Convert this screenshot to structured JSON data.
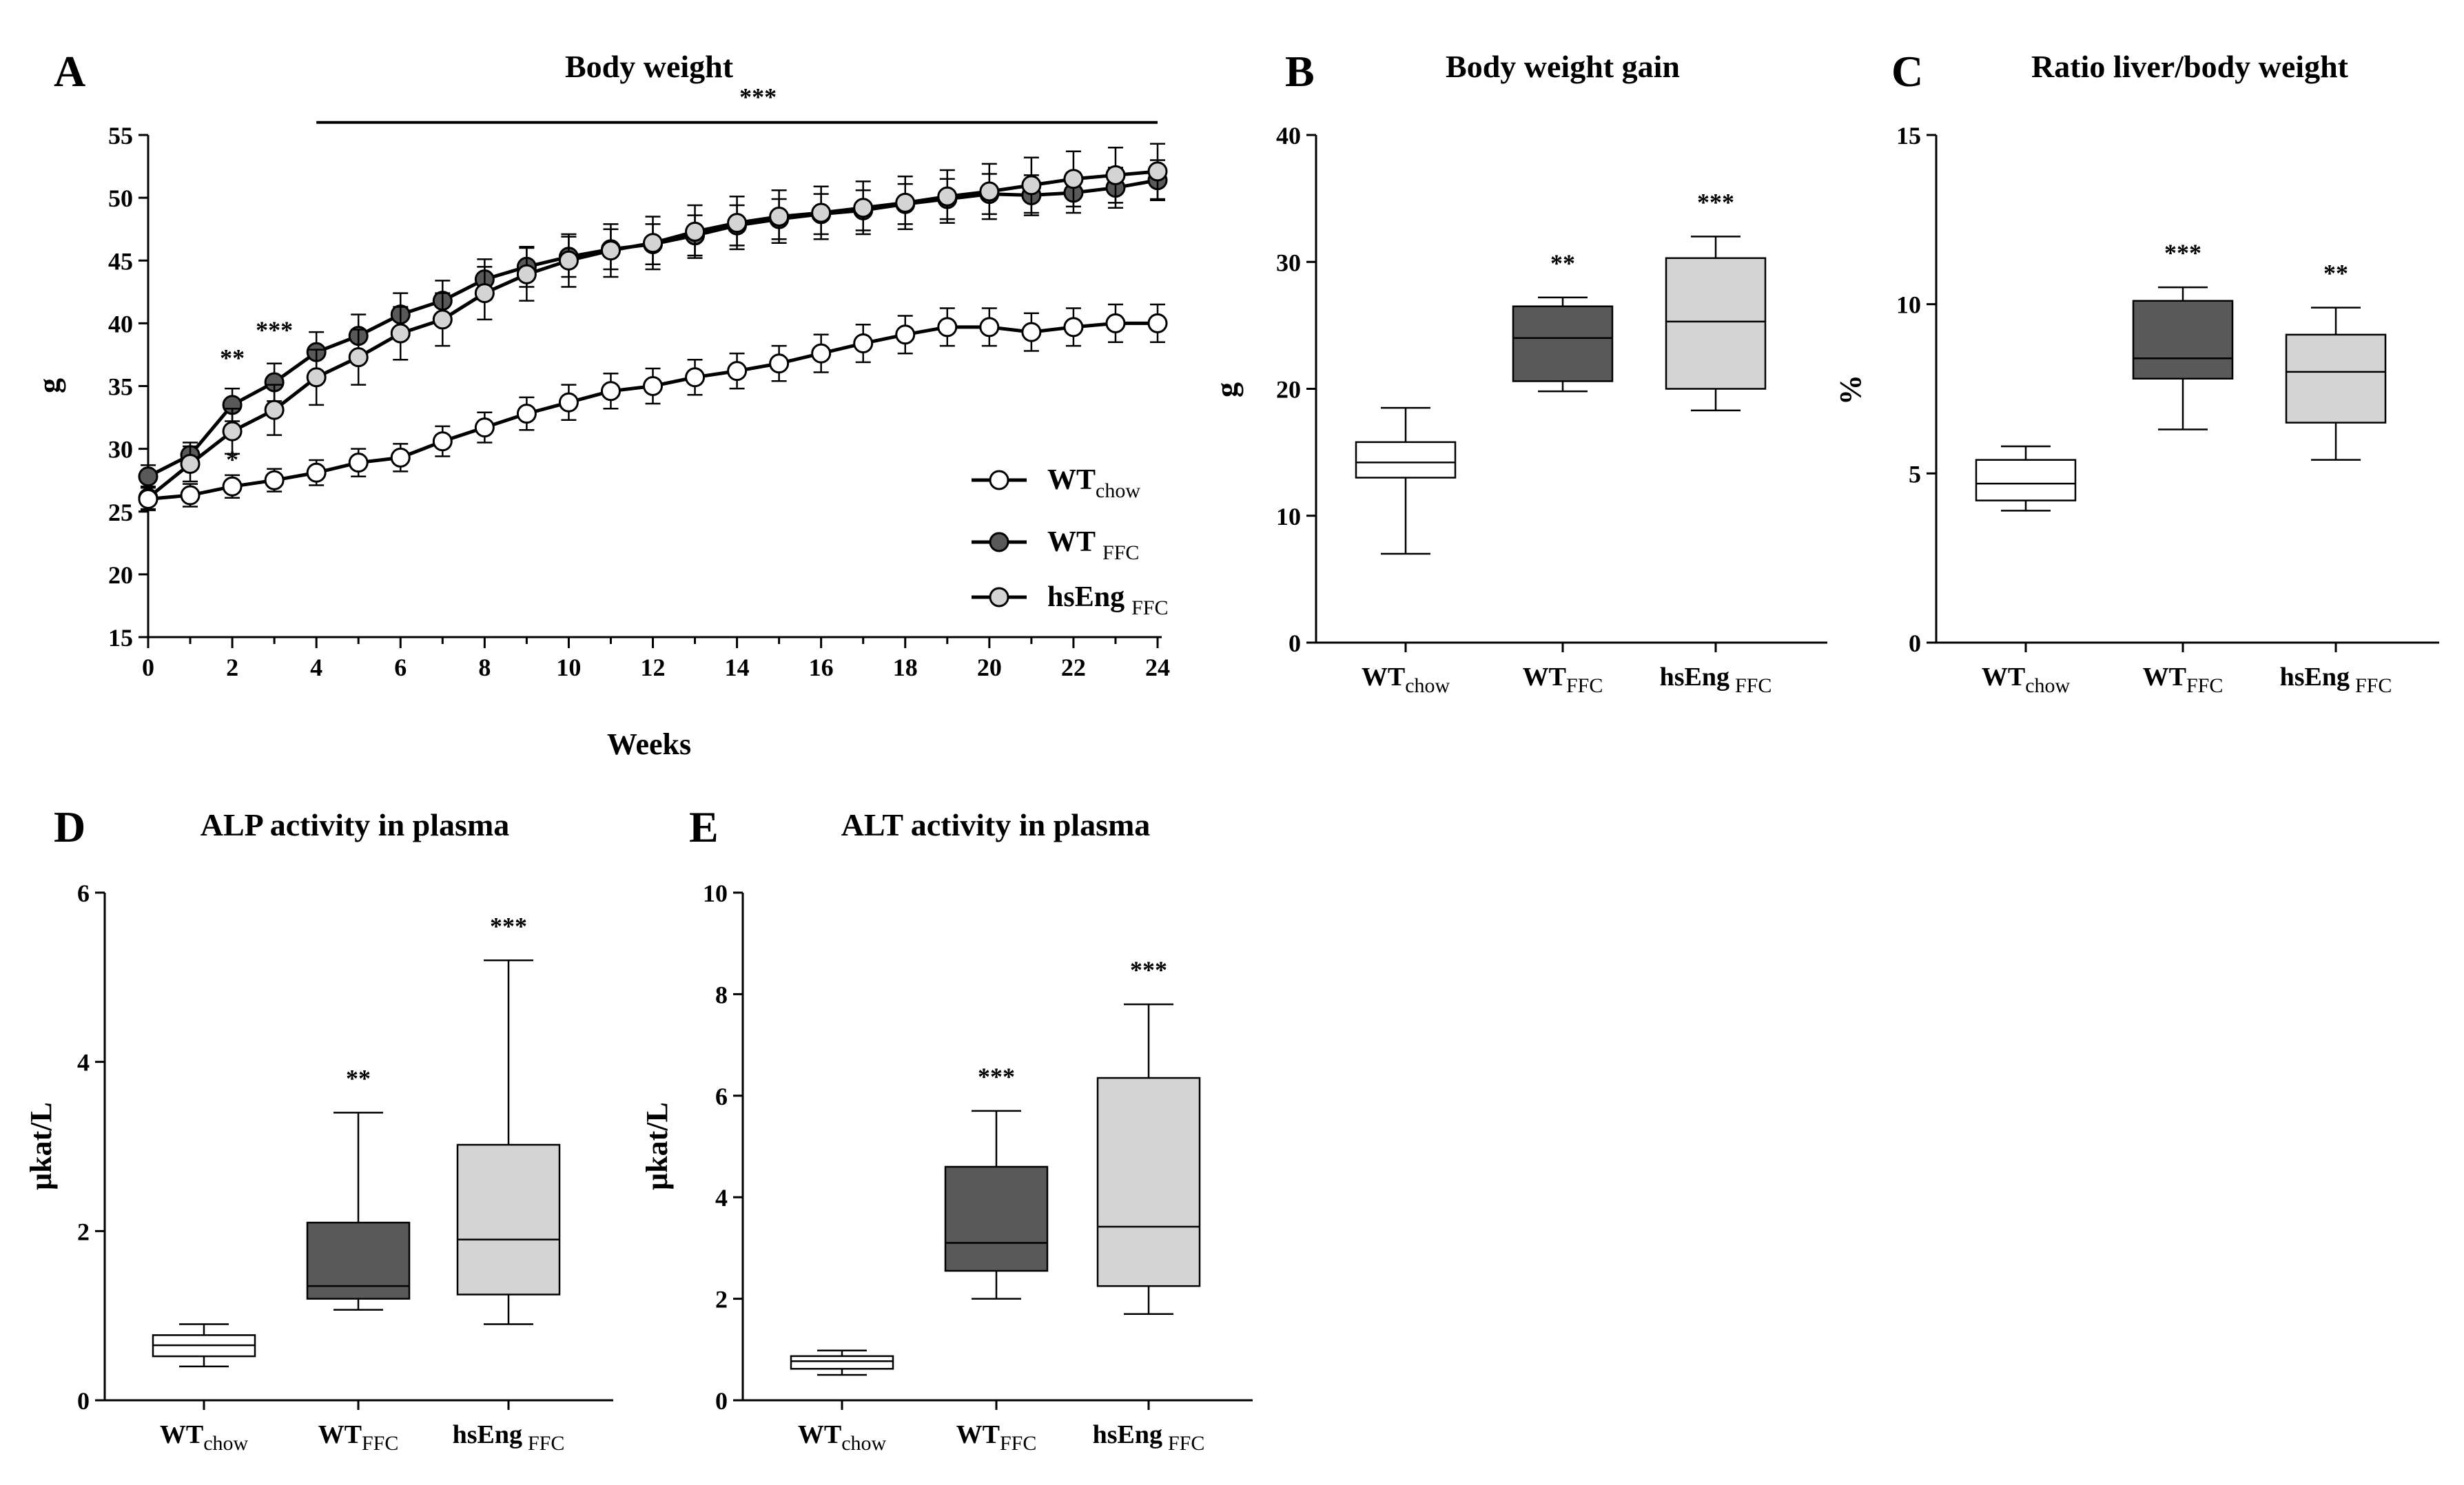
{
  "chart_data": [
    {
      "id": "A",
      "type": "line",
      "panel_letter": "A",
      "title": "Body weight",
      "xlabel": "Weeks",
      "ylabel": "g",
      "xlim": [
        0,
        24
      ],
      "ylim": [
        15,
        55
      ],
      "xticks": [
        0,
        2,
        4,
        6,
        8,
        10,
        12,
        14,
        16,
        18,
        20,
        22,
        24
      ],
      "xtick_labels": [
        "0",
        "2",
        "4",
        "6",
        "8",
        "10",
        "12",
        "14",
        "16",
        "18",
        "20",
        "22",
        "24"
      ],
      "yticks": [
        15,
        20,
        25,
        30,
        35,
        40,
        45,
        50,
        55
      ],
      "ytick_labels": [
        "15",
        "20",
        "25",
        "30",
        "35",
        "40",
        "45",
        "50",
        "55"
      ],
      "x": [
        0,
        1,
        2,
        3,
        4,
        5,
        6,
        7,
        8,
        9,
        10,
        11,
        12,
        13,
        14,
        15,
        16,
        17,
        18,
        19,
        20,
        21,
        22,
        23,
        24
      ],
      "series": [
        {
          "name": "WT chow",
          "legend_main": "WT",
          "legend_sub": "chow",
          "fill": "#ffffff",
          "values": [
            26.0,
            26.3,
            27.0,
            27.5,
            28.1,
            28.9,
            29.3,
            30.6,
            31.7,
            32.8,
            33.7,
            34.6,
            35.0,
            35.7,
            36.2,
            36.8,
            37.6,
            38.4,
            39.1,
            39.7,
            39.7,
            39.3,
            39.7,
            40.0,
            40.0
          ],
          "errors": [
            0.9,
            0.9,
            0.9,
            0.9,
            1.0,
            1.1,
            1.1,
            1.2,
            1.2,
            1.3,
            1.4,
            1.4,
            1.4,
            1.4,
            1.4,
            1.4,
            1.5,
            1.5,
            1.5,
            1.5,
            1.5,
            1.5,
            1.5,
            1.5,
            1.5
          ]
        },
        {
          "name": "WT FFC",
          "legend_main": "WT",
          "legend_sub": "FFC",
          "fill": "#595959",
          "values": [
            27.8,
            29.5,
            33.5,
            35.3,
            37.7,
            39.0,
            40.7,
            41.8,
            43.5,
            44.5,
            45.3,
            45.9,
            46.3,
            47.0,
            47.8,
            48.3,
            48.7,
            49.0,
            49.5,
            49.9,
            50.3,
            50.2,
            50.4,
            50.8,
            51.4
          ],
          "errors": [
            0.9,
            1.0,
            1.3,
            1.5,
            1.6,
            1.7,
            1.7,
            1.6,
            1.6,
            1.6,
            1.6,
            1.6,
            1.6,
            1.6,
            1.6,
            1.6,
            1.6,
            1.6,
            1.6,
            1.6,
            1.6,
            1.6,
            1.6,
            1.6,
            1.6
          ]
        },
        {
          "name": "hsEng FFC",
          "legend_main": "hsEng",
          "legend_sub": "FFC",
          "fill": "#d4d4d4",
          "values": [
            26.1,
            28.8,
            31.4,
            33.1,
            35.7,
            37.3,
            39.2,
            40.3,
            42.4,
            43.9,
            45.0,
            45.8,
            46.4,
            47.3,
            48.0,
            48.5,
            48.8,
            49.2,
            49.6,
            50.1,
            50.5,
            51.0,
            51.5,
            51.8,
            52.1
          ],
          "errors": [
            0.9,
            1.4,
            1.8,
            2.0,
            2.2,
            2.2,
            2.1,
            2.1,
            2.1,
            2.1,
            2.1,
            2.1,
            2.1,
            2.1,
            2.1,
            2.1,
            2.1,
            2.1,
            2.1,
            2.1,
            2.2,
            2.2,
            2.2,
            2.2,
            2.2
          ]
        }
      ],
      "annotations": [
        {
          "text": "**",
          "x": 2,
          "y": 36.6
        },
        {
          "text": "***",
          "x": 3,
          "y": 38.8
        },
        {
          "text": "*",
          "x": 2,
          "y": 28.5
        },
        {
          "text": "***",
          "x": 14.5,
          "y": 57.4
        }
      ],
      "significance_bar": {
        "x_start": 4,
        "x_end": 24,
        "y": 56.0
      }
    },
    {
      "id": "B",
      "type": "box",
      "panel_letter": "B",
      "title": "Body weight gain",
      "ylabel": "g",
      "ylim": [
        0,
        40
      ],
      "yticks": [
        0,
        10,
        20,
        30,
        40
      ],
      "ytick_labels": [
        "0",
        "10",
        "20",
        "30",
        "40"
      ],
      "groups": [
        {
          "main": "WT",
          "sub": "chow",
          "sub_gap": false,
          "fill": "#ffffff",
          "min": 7.0,
          "q1": 13.0,
          "median": 14.2,
          "q3": 15.8,
          "max": 18.5,
          "stars": ""
        },
        {
          "main": "WT",
          "sub": "FFC",
          "sub_gap": false,
          "fill": "#595959",
          "min": 19.8,
          "q1": 20.6,
          "median": 24.0,
          "q3": 26.5,
          "max": 27.2,
          "stars": "**"
        },
        {
          "main": "hsEng",
          "sub": "FFC",
          "sub_gap": true,
          "fill": "#d4d4d4",
          "min": 18.3,
          "q1": 20.0,
          "median": 25.3,
          "q3": 30.3,
          "max": 32.0,
          "stars": "***"
        }
      ]
    },
    {
      "id": "C",
      "type": "box",
      "panel_letter": "C",
      "title": "Ratio liver/body weight",
      "ylabel": "%",
      "ylim": [
        0,
        15
      ],
      "yticks": [
        0,
        5,
        10,
        15
      ],
      "ytick_labels": [
        "0",
        "5",
        "10",
        "15"
      ],
      "groups": [
        {
          "main": "WT",
          "sub": "chow",
          "sub_gap": false,
          "fill": "#ffffff",
          "min": 3.9,
          "q1": 4.2,
          "median": 4.7,
          "q3": 5.4,
          "max": 5.8,
          "stars": ""
        },
        {
          "main": "WT",
          "sub": "FFC",
          "sub_gap": false,
          "fill": "#595959",
          "min": 6.3,
          "q1": 7.8,
          "median": 8.4,
          "q3": 10.1,
          "max": 10.5,
          "stars": "***"
        },
        {
          "main": "hsEng",
          "sub": "FFC",
          "sub_gap": true,
          "fill": "#d4d4d4",
          "min": 5.4,
          "q1": 6.5,
          "median": 8.0,
          "q3": 9.1,
          "max": 9.9,
          "stars": "**"
        }
      ]
    },
    {
      "id": "D",
      "type": "box",
      "panel_letter": "D",
      "title": "ALP activity in plasma",
      "ylabel": "μkat/L",
      "ylim": [
        0,
        6
      ],
      "yticks": [
        0,
        2,
        4,
        6
      ],
      "ytick_labels": [
        "0",
        "2",
        "4",
        "6"
      ],
      "groups": [
        {
          "main": "WT",
          "sub": "chow",
          "sub_gap": false,
          "fill": "#ffffff",
          "min": 0.4,
          "q1": 0.52,
          "median": 0.65,
          "q3": 0.77,
          "max": 0.9,
          "stars": ""
        },
        {
          "main": "WT",
          "sub": "FFC",
          "sub_gap": false,
          "fill": "#595959",
          "min": 1.07,
          "q1": 1.2,
          "median": 1.35,
          "q3": 2.1,
          "max": 3.4,
          "stars": "**"
        },
        {
          "main": "hsEng",
          "sub": "FFC",
          "sub_gap": true,
          "fill": "#d4d4d4",
          "min": 0.9,
          "q1": 1.25,
          "median": 1.9,
          "q3": 3.02,
          "max": 5.2,
          "stars": "***"
        }
      ]
    },
    {
      "id": "E",
      "type": "box",
      "panel_letter": "E",
      "title": "ALT activity in plasma",
      "ylabel": "μkat/L",
      "ylim": [
        0,
        10
      ],
      "yticks": [
        0,
        2,
        4,
        6,
        8,
        10
      ],
      "ytick_labels": [
        "0",
        "2",
        "4",
        "6",
        "8",
        "10"
      ],
      "groups": [
        {
          "main": "WT",
          "sub": "chow",
          "sub_gap": false,
          "fill": "#ffffff",
          "min": 0.5,
          "q1": 0.62,
          "median": 0.77,
          "q3": 0.87,
          "max": 0.98,
          "stars": ""
        },
        {
          "main": "WT",
          "sub": "FFC",
          "sub_gap": false,
          "fill": "#595959",
          "min": 2.0,
          "q1": 2.55,
          "median": 3.1,
          "q3": 4.6,
          "max": 5.7,
          "stars": "***"
        },
        {
          "main": "hsEng",
          "sub": "FFC",
          "sub_gap": true,
          "fill": "#d4d4d4",
          "min": 1.7,
          "q1": 2.25,
          "median": 3.42,
          "q3": 6.35,
          "max": 7.8,
          "stars": "***"
        }
      ]
    }
  ]
}
